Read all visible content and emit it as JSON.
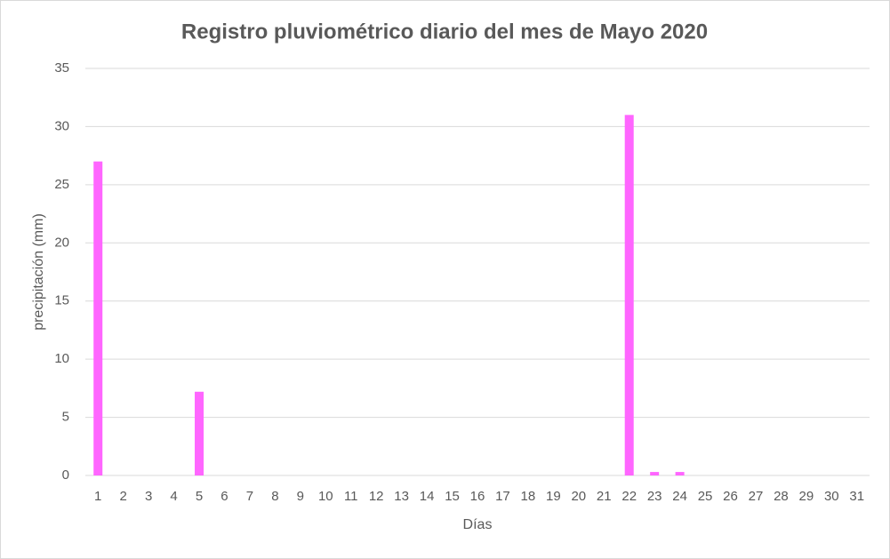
{
  "chart_data": {
    "type": "bar",
    "title": "Registro pluviométrico diario del mes de Mayo 2020",
    "x_label": "Días",
    "y_label": "precipitación (mm)",
    "categories": [
      "1",
      "2",
      "3",
      "4",
      "5",
      "6",
      "7",
      "8",
      "9",
      "10",
      "11",
      "12",
      "13",
      "14",
      "15",
      "16",
      "17",
      "18",
      "19",
      "20",
      "21",
      "22",
      "23",
      "24",
      "25",
      "26",
      "27",
      "28",
      "29",
      "30",
      "31"
    ],
    "values": [
      27,
      0,
      0,
      0,
      7.2,
      0,
      0,
      0,
      0,
      0,
      0,
      0,
      0,
      0,
      0,
      0,
      0,
      0,
      0,
      0,
      0,
      31,
      0.3,
      0.3,
      0,
      0,
      0,
      0,
      0,
      0,
      0
    ],
    "color": "#ff66ff",
    "ylim": [
      0,
      35
    ],
    "yticks": [
      0,
      5,
      10,
      15,
      20,
      25,
      30,
      35
    ],
    "grid": true
  }
}
